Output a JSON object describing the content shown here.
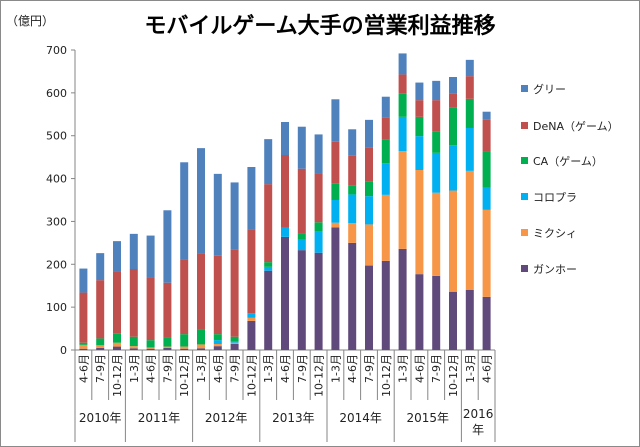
{
  "chart_data": {
    "type": "bar",
    "stacked": true,
    "title": "モバイルゲーム大手の営業利益推移",
    "ylabel": "（億円）",
    "xlabel": "",
    "ylim": [
      0,
      700
    ],
    "yticks": [
      0,
      100,
      200,
      300,
      400,
      500,
      600,
      700
    ],
    "grid": false,
    "legend_position": "right",
    "years": [
      {
        "label": "2010年",
        "count": 3
      },
      {
        "label": "2011年",
        "count": 4
      },
      {
        "label": "2012年",
        "count": 4
      },
      {
        "label": "2013年",
        "count": 4
      },
      {
        "label": "2014年",
        "count": 4
      },
      {
        "label": "2015年",
        "count": 4
      },
      {
        "label": "2016年",
        "count": 2
      }
    ],
    "categories": [
      "4-6月",
      "7-9月",
      "10-12月",
      "1-3月",
      "4-6月",
      "7-9月",
      "10-12月",
      "1-3月",
      "4-6月",
      "7-9月",
      "10-12月",
      "1-3月",
      "4-6月",
      "7-9月",
      "10-12月",
      "1-3月",
      "4-6月",
      "7-9月",
      "10-12月",
      "1-3月",
      "4-6月",
      "7-9月",
      "10-12月",
      "1-3月",
      "4-6月"
    ],
    "series": [
      {
        "name": "ガンホー",
        "color": "#604A7B",
        "values": [
          3,
          5,
          8,
          4,
          3,
          5,
          3,
          4,
          9,
          14,
          68,
          185,
          264,
          233,
          227,
          286,
          250,
          197,
          208,
          236,
          177,
          173,
          136,
          140,
          124
        ]
      },
      {
        "name": "ミクシィ",
        "color": "#F79646",
        "values": [
          9,
          6,
          9,
          5,
          3,
          3,
          5,
          9,
          5,
          3,
          7,
          0,
          0,
          0,
          0,
          11,
          46,
          96,
          154,
          228,
          243,
          194,
          236,
          278,
          203
        ]
      },
      {
        "name": "コロプラ",
        "color": "#00B0F0",
        "values": [
          0,
          0,
          0,
          0,
          0,
          0,
          0,
          0,
          9,
          4,
          11,
          9,
          21,
          24,
          49,
          53,
          67,
          66,
          74,
          80,
          79,
          93,
          106,
          100,
          52
        ]
      },
      {
        "name": "CA（ゲーム）",
        "color": "#00B050",
        "values": [
          5,
          16,
          22,
          22,
          17,
          21,
          29,
          35,
          14,
          10,
          0,
          11,
          0,
          15,
          22,
          39,
          20,
          35,
          56,
          55,
          45,
          49,
          87,
          68,
          84
        ]
      },
      {
        "name": "DeNA（ゲーム）",
        "color": "#C0504D",
        "values": [
          117,
          136,
          144,
          158,
          146,
          128,
          175,
          178,
          183,
          204,
          196,
          182,
          170,
          151,
          114,
          97,
          70,
          79,
          51,
          44,
          39,
          74,
          34,
          53,
          74
        ]
      },
      {
        "name": "グリー",
        "color": "#4F81BD",
        "values": [
          56,
          63,
          71,
          82,
          98,
          169,
          226,
          245,
          191,
          156,
          145,
          105,
          77,
          98,
          91,
          99,
          62,
          64,
          48,
          49,
          41,
          45,
          38,
          38,
          19
        ]
      }
    ],
    "legend_order": [
      "グリー",
      "DeNA（ゲーム）",
      "CA（ゲーム）",
      "コロプラ",
      "ミクシィ",
      "ガンホー"
    ]
  }
}
